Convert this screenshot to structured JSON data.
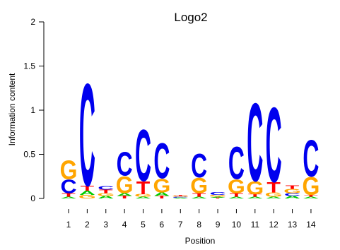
{
  "chart_data": {
    "type": "sequence-logo",
    "title": "Logo2",
    "xlabel": "Position",
    "ylabel": "Information content",
    "ylim": [
      0,
      2
    ],
    "yticks": [
      "0",
      "0.5",
      "1",
      "1.5",
      "2"
    ],
    "positions": [
      "1",
      "2",
      "3",
      "4",
      "5",
      "6",
      "7",
      "8",
      "9",
      "10",
      "11",
      "12",
      "13",
      "14"
    ],
    "colors": {
      "A": "#00cc00",
      "C": "#0000ee",
      "G": "#ffa500",
      "T": "#ff0000"
    },
    "stacks": [
      [
        [
          "A",
          0.02
        ],
        [
          "T",
          0.04
        ],
        [
          "C",
          0.16
        ],
        [
          "G",
          0.22
        ]
      ],
      [
        [
          "G",
          0.04
        ],
        [
          "A",
          0.05
        ],
        [
          "T",
          0.06
        ],
        [
          "C",
          1.19
        ]
      ],
      [
        [
          "A",
          0.03
        ],
        [
          "G",
          0.03
        ],
        [
          "T",
          0.04
        ],
        [
          "C",
          0.04
        ]
      ],
      [
        [
          "T",
          0.03
        ],
        [
          "A",
          0.03
        ],
        [
          "G",
          0.2
        ],
        [
          "C",
          0.28
        ]
      ],
      [
        [
          "A",
          0.02
        ],
        [
          "G",
          0.03
        ],
        [
          "T",
          0.15
        ],
        [
          "C",
          0.6
        ]
      ],
      [
        [
          "T",
          0.03
        ],
        [
          "A",
          0.04
        ],
        [
          "G",
          0.16
        ],
        [
          "C",
          0.41
        ]
      ],
      [
        [
          "A",
          0.01
        ],
        [
          "C",
          0.01
        ],
        [
          "G",
          0.01
        ],
        [
          "T",
          0.01
        ]
      ],
      [
        [
          "A",
          0.02
        ],
        [
          "T",
          0.04
        ],
        [
          "G",
          0.18
        ],
        [
          "C",
          0.28
        ]
      ],
      [
        [
          "T",
          0.01
        ],
        [
          "A",
          0.01
        ],
        [
          "G",
          0.02
        ],
        [
          "C",
          0.03
        ]
      ],
      [
        [
          "A",
          0.02
        ],
        [
          "T",
          0.04
        ],
        [
          "G",
          0.16
        ],
        [
          "C",
          0.38
        ]
      ],
      [
        [
          "A",
          0.02
        ],
        [
          "T",
          0.03
        ],
        [
          "G",
          0.15
        ],
        [
          "C",
          0.91
        ]
      ],
      [
        [
          "A",
          0.02
        ],
        [
          "G",
          0.05
        ],
        [
          "T",
          0.12
        ],
        [
          "C",
          0.87
        ]
      ],
      [
        [
          "A",
          0.03
        ],
        [
          "C",
          0.03
        ],
        [
          "G",
          0.05
        ],
        [
          "T",
          0.04
        ]
      ],
      [
        [
          "A",
          0.02
        ],
        [
          "T",
          0.02
        ],
        [
          "G",
          0.21
        ],
        [
          "C",
          0.43
        ]
      ]
    ]
  }
}
